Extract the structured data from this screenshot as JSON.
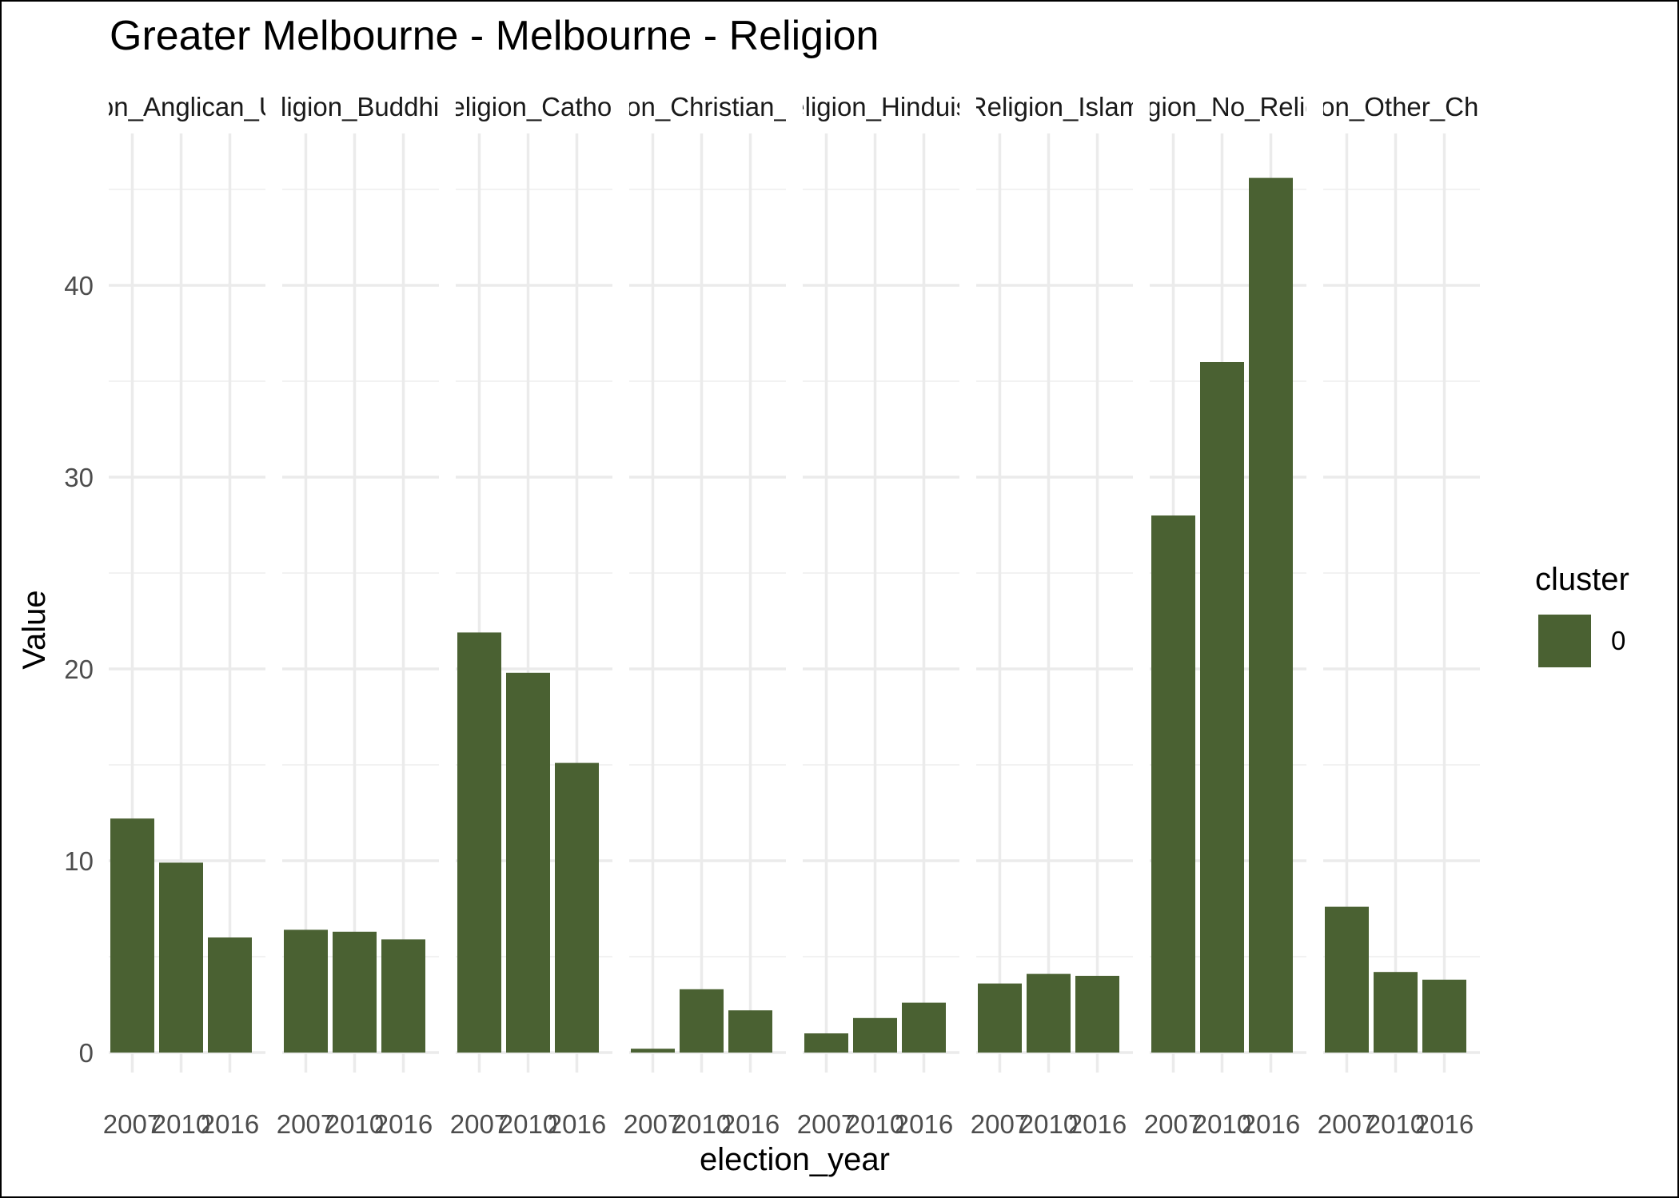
{
  "chart_data": {
    "type": "bar",
    "title": "Greater Melbourne - Melbourne - Religion",
    "xlabel": "election_year",
    "ylabel": "Value",
    "ylim": [
      0,
      46
    ],
    "y_ticks": [
      0,
      10,
      20,
      30,
      40
    ],
    "categories": [
      "2007",
      "2010",
      "2016"
    ],
    "facets": [
      {
        "label": "Religion_Anglican_Uniting",
        "values": [
          12.2,
          9.9,
          6.0
        ]
      },
      {
        "label": "Religion_Buddhism",
        "values": [
          6.4,
          6.3,
          5.9
        ]
      },
      {
        "label": "Religion_Catholic",
        "values": [
          21.9,
          19.8,
          15.1
        ]
      },
      {
        "label": "Religion_Christian_Other",
        "values": [
          0.2,
          3.3,
          2.2
        ]
      },
      {
        "label": "Religion_Hinduism",
        "values": [
          1.0,
          1.8,
          2.6
        ]
      },
      {
        "label": "Religion_Islam",
        "values": [
          3.6,
          4.1,
          4.0
        ]
      },
      {
        "label": "Religion_No_Religion",
        "values": [
          28.0,
          36.0,
          45.6
        ]
      },
      {
        "label": "Religion_Other_Christian",
        "values": [
          7.6,
          4.2,
          3.8
        ]
      }
    ],
    "legend": {
      "title": "cluster",
      "entries": [
        {
          "label": "0",
          "color": "#4a6132"
        }
      ],
      "position": "right"
    },
    "bar_color": "#4a6132",
    "grid": true
  }
}
